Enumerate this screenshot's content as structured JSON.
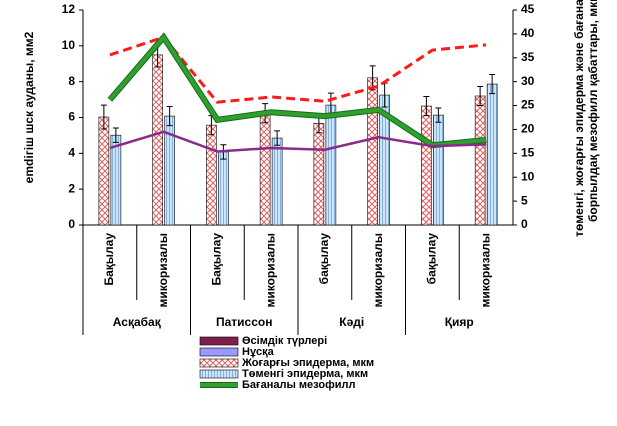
{
  "chart_data": {
    "type": "bar",
    "categories": [
      "Бақылау",
      "микоризалы",
      "Бақылау",
      "микоризалы",
      "бақылау",
      "микоризалы",
      "бақылау",
      "микоризалы"
    ],
    "groups": [
      "Асқабақ",
      "Патиссон",
      "Кәдi",
      "Қияр"
    ],
    "ylabel": "emdiгiш шск ауданы, мм2",
    "y2label": [
      "төменгі, жоғарғы эпидерма және бағаналы,",
      "борпылдақ мезофилл қабаттары, мкм"
    ],
    "ylim": [
      0,
      12
    ],
    "yticks": [
      0,
      2,
      4,
      6,
      8,
      10,
      12
    ],
    "y2lim": [
      0,
      45
    ],
    "y2ticks": [
      0,
      5,
      10,
      15,
      20,
      25,
      30,
      35,
      40,
      45
    ],
    "legend_extra": [
      {
        "label": "Өсімдік түрлері",
        "color": "#7f1f4f"
      },
      {
        "label": "Нұсқа",
        "color": "#9999ff"
      }
    ],
    "series": [
      {
        "name": "Жоғарғы эпидерма, мкм",
        "type": "bar",
        "axis": "y2",
        "color": "#e06060",
        "pattern": "cross",
        "values": [
          22.6,
          35.6,
          20.9,
          23.4,
          21.3,
          30.8,
          24.9,
          27
        ],
        "errors": [
          2.5,
          2.5,
          2,
          2,
          2,
          2.5,
          2,
          2
        ]
      },
      {
        "name": "Төменгі эпидерма, мкм",
        "type": "bar",
        "axis": "y2",
        "color": "#7fb2e6",
        "pattern": "vline",
        "values": [
          18.8,
          22.8,
          15.3,
          18.2,
          25.1,
          27.2,
          23,
          29.5
        ],
        "errors": [
          1.5,
          2,
          1.5,
          1.5,
          2.5,
          2.5,
          1.5,
          2
        ]
      },
      {
        "type": "line",
        "axis": "y2",
        "color": "#ff1a1a",
        "dash": true,
        "values": [
          35.6,
          39.3,
          25.7,
          26.8,
          25.9,
          29.1,
          36.6,
          37.7
        ]
      },
      {
        "name": "Бағаналы мезофилл",
        "type": "line",
        "axis": "y2",
        "color": "#2ea02e",
        "values": [
          26.2,
          39.3,
          22,
          23.6,
          22.8,
          24.1,
          16.7,
          17.8
        ]
      },
      {
        "type": "line",
        "axis": "y",
        "color": "#8a2a8a",
        "values": [
          4.3,
          5.2,
          4.1,
          4.3,
          4.2,
          4.9,
          4.4,
          4.5
        ]
      }
    ]
  }
}
